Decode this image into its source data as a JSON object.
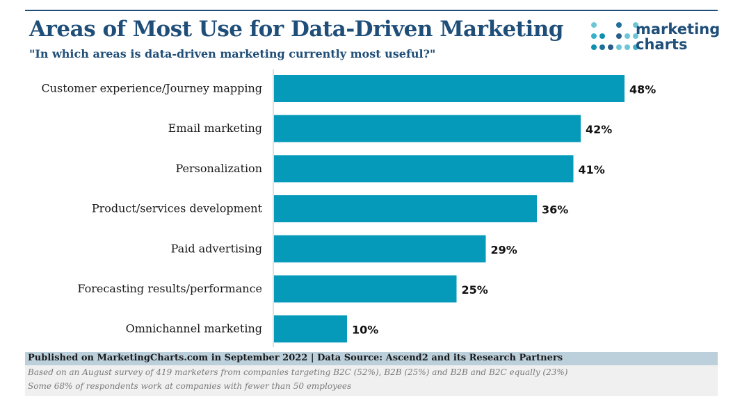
{
  "header": {
    "title": "Areas of Most Use for Data-Driven Marketing",
    "subtitle": "\"In which areas is data-driven marketing currently most useful?\""
  },
  "logo": {
    "line1": "marketing",
    "line2": "charts",
    "icon": "dot-matrix-logo-icon"
  },
  "colors": {
    "bar": "#069aba",
    "title": "#1f4e79",
    "footer_bar": "#bcd0dc",
    "footer_notes": "#f0f0f0"
  },
  "chart_data": {
    "type": "bar",
    "orientation": "horizontal",
    "categories": [
      "Customer experience/Journey mapping",
      "Email marketing",
      "Personalization",
      "Product/services development",
      "Paid advertising",
      "Forecasting results/performance",
      "Omnichannel marketing"
    ],
    "values": [
      48,
      42,
      41,
      36,
      29,
      25,
      10
    ],
    "value_labels": [
      "48%",
      "42%",
      "41%",
      "36%",
      "29%",
      "25%",
      "10%"
    ],
    "value_suffix": "%",
    "xlim": [
      0,
      60
    ],
    "grid": false,
    "legend": "none"
  },
  "footer": {
    "source": "Published on MarketingCharts.com in September 2022 | Data Source: Ascend2 and its Research Partners",
    "note1": "Based on an August survey of 419 marketers from companies targeting B2C (52%), B2B (25%) and B2B and B2C equally (23%)",
    "note2": "Some 68% of respondents work at companies with fewer than 50 employees"
  }
}
